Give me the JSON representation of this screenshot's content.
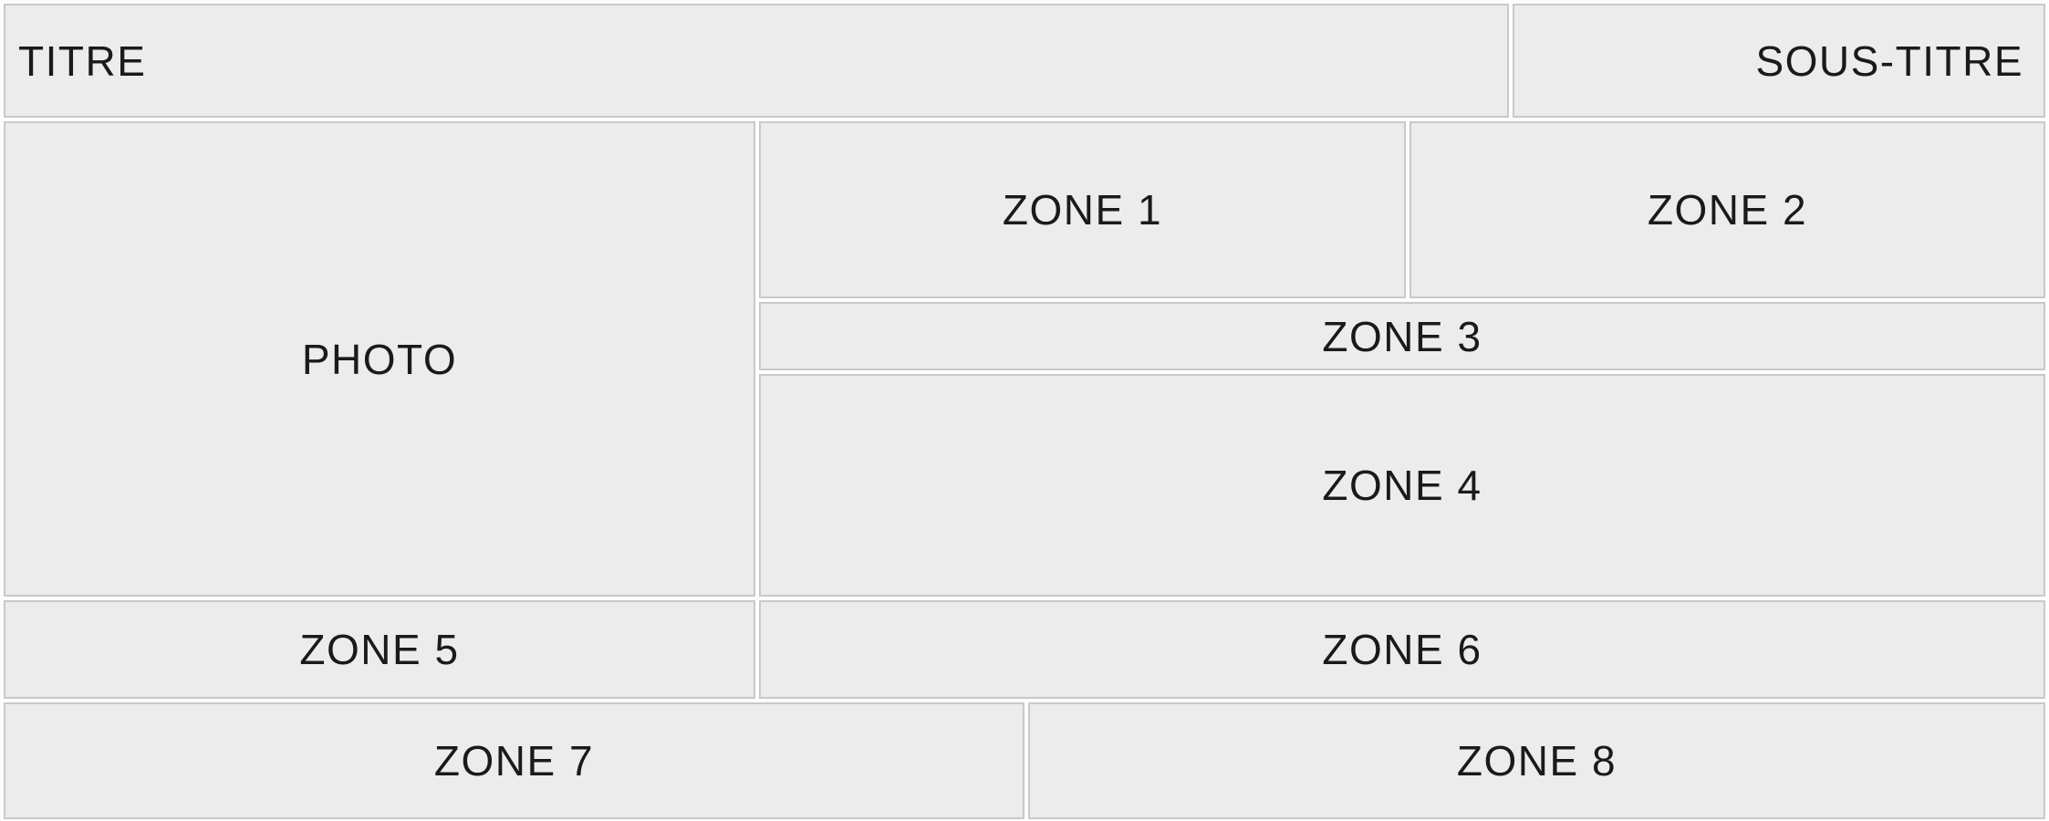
{
  "theme": {
    "page_background": "#fdfdfd",
    "box_fill": "#ececec",
    "box_border": "#c9c9c9",
    "text_color": "#1a1a1a"
  },
  "zones": {
    "titre": "TITRE",
    "sous_titre": "SOUS-TITRE",
    "photo": "PHOTO",
    "zone1": "ZONE 1",
    "zone2": "ZONE 2",
    "zone3": "ZONE 3",
    "zone4": "ZONE 4",
    "zone5": "ZONE 5",
    "zone6": "ZONE 6",
    "zone7": "ZONE 7",
    "zone8": "ZONE 8"
  }
}
